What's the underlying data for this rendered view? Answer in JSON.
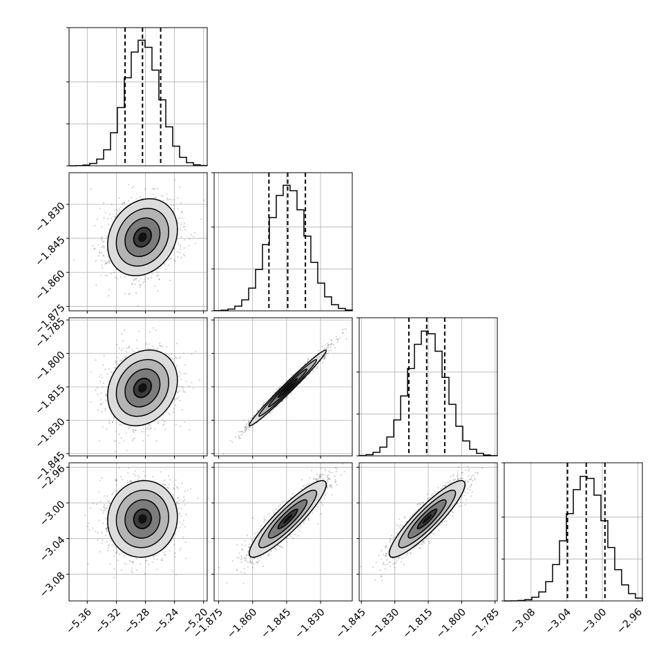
{
  "chart_data": {
    "type": "corner",
    "title": "",
    "n_params": 4,
    "params": [
      {
        "index": 0,
        "label": "",
        "mean": -5.284,
        "sd": 0.024,
        "range": [
          -5.385,
          -5.195
        ],
        "ticks": [
          -5.36,
          -5.32,
          -5.28,
          -5.24,
          -5.2
        ],
        "tick_labels": [
          "−5.36",
          "−5.32",
          "−5.28",
          "−5.24",
          "−5.20"
        ],
        "quantiles": [
          -5.308,
          -5.284,
          -5.259
        ]
      },
      {
        "index": 1,
        "label": "",
        "mean": -1.8445,
        "sd": 0.0085,
        "range": [
          -1.877,
          -1.816
        ],
        "ticks": [
          -1.875,
          -1.86,
          -1.845,
          -1.83
        ],
        "tick_labels": [
          "−1.875",
          "−1.860",
          "−1.845",
          "−1.830"
        ],
        "quantiles": [
          -1.8528,
          -1.8445,
          -1.8367
        ]
      },
      {
        "index": 2,
        "label": "",
        "mean": -1.8155,
        "sd": 0.0085,
        "range": [
          -1.846,
          -1.784
        ],
        "ticks": [
          -1.845,
          -1.83,
          -1.815,
          -1.8,
          -1.785
        ],
        "tick_labels": [
          "−1.845",
          "−1.830",
          "−1.815",
          "−1.800",
          "−1.785"
        ],
        "quantiles": [
          -1.8237,
          -1.8157,
          -1.8076
        ]
      },
      {
        "index": 3,
        "label": "",
        "mean": -3.018,
        "sd": 0.0215,
        "range": [
          -3.11,
          -2.955
        ],
        "ticks": [
          -3.08,
          -3.04,
          -3.0,
          -2.96
        ],
        "tick_labels": [
          "−3.08",
          "−3.04",
          "−3.00",
          "−2.96"
        ],
        "quantiles": [
          -3.039,
          -3.018,
          -2.997
        ]
      }
    ],
    "correlations": [
      [
        1.0,
        0.2,
        0.2,
        0.05
      ],
      [
        0.2,
        1.0,
        0.985,
        0.9
      ],
      [
        0.2,
        0.985,
        1.0,
        0.9
      ],
      [
        0.05,
        0.9,
        0.9,
        1.0
      ]
    ],
    "hist_bins": 20,
    "quantile_levels": [
      0.16,
      0.5,
      0.84
    ],
    "contour_levels_sigma": [
      0.5,
      1.0,
      1.5,
      2.0
    ],
    "grid": true,
    "colors": {
      "frame": "#000000",
      "grid": "#b0b0b0",
      "points": "#000000",
      "density_dark": "#000000"
    }
  }
}
